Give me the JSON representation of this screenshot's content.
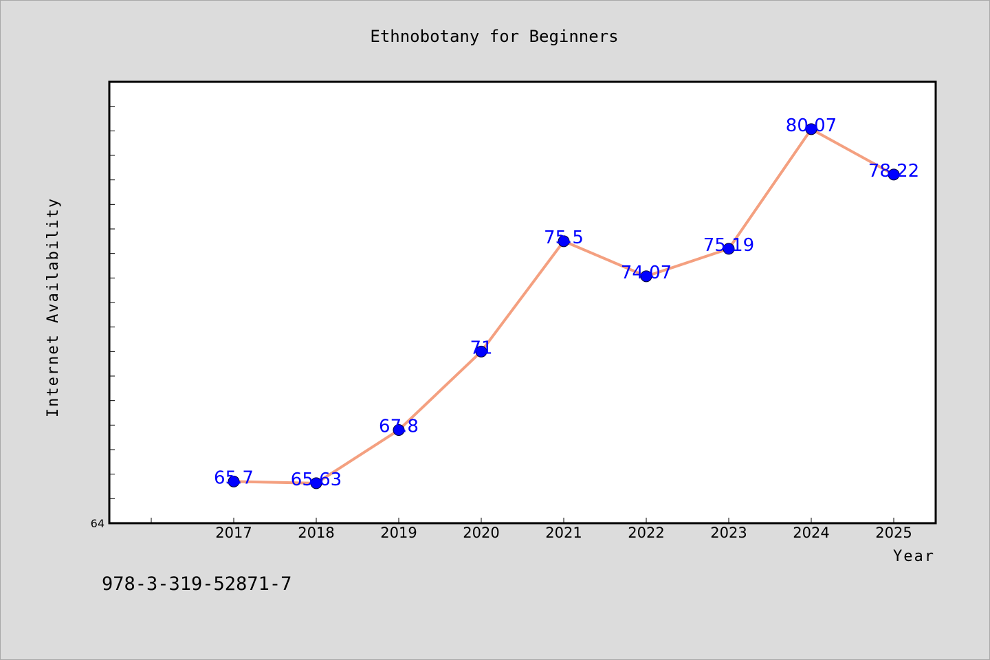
{
  "chart_data": {
    "type": "line",
    "title": "Ethnobotany for Beginners",
    "xlabel": "Year",
    "ylabel": "Internet Availability",
    "categories": [
      "2017",
      "2018",
      "2019",
      "2020",
      "2021",
      "2022",
      "2023",
      "2024",
      "2025"
    ],
    "series": [
      {
        "values": [
          65.7,
          65.63,
          67.8,
          71,
          75.5,
          74.07,
          75.19,
          80.07,
          78.22
        ],
        "labels": [
          "65.7",
          "65.63",
          "67.8",
          "71",
          "75.5",
          "74.07",
          "75.19",
          "80.07",
          "78.22"
        ],
        "line_color": "#f4a080",
        "marker_color": "#0000ff"
      }
    ],
    "y_tick_labels": [
      "64"
    ],
    "ylim": [
      64,
      82
    ],
    "grid": false,
    "legend": "none"
  },
  "footer": {
    "isbn": "978-3-319-52871-7"
  }
}
